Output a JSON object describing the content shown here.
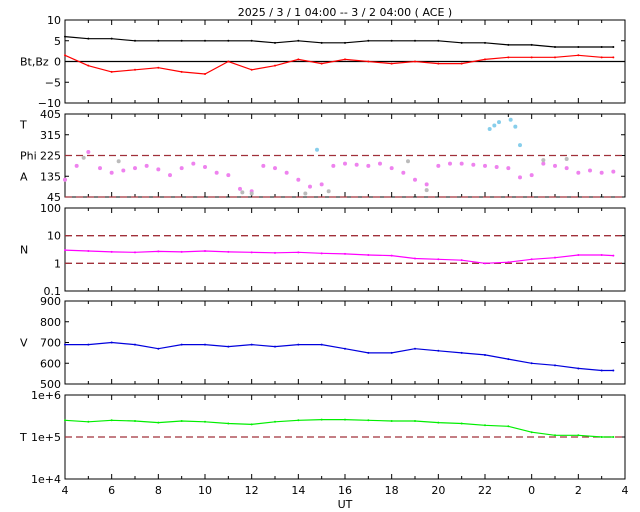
{
  "chart_data": {
    "title": "2025 /  3 /  1    04:00 --  3 /  2    04:00 ( ACE )",
    "xlabel": "UT",
    "x_ticks": [
      "4",
      "6",
      "8",
      "10",
      "12",
      "14",
      "16",
      "18",
      "20",
      "22",
      "0",
      "2",
      "4"
    ],
    "x_range_hours": [
      4,
      28
    ],
    "panels": [
      {
        "id": "mag",
        "type": "line",
        "ylabel": "Bt,Bz",
        "ylim": [
          -10,
          10
        ],
        "y_ticks": [
          "10",
          "5",
          "0",
          "−5",
          "−10"
        ],
        "y_tick_values": [
          10,
          5,
          0,
          -5,
          -10
        ],
        "zero_line": true,
        "series": [
          {
            "name": "Bt",
            "color": "#000000",
            "x": [
              4,
              5,
              6,
              7,
              8,
              9,
              10,
              11,
              12,
              13,
              14,
              15,
              16,
              17,
              18,
              19,
              20,
              21,
              22,
              23,
              24,
              25,
              26,
              27,
              27.5
            ],
            "y": [
              6,
              5.5,
              5.5,
              5,
              5,
              5,
              5,
              5,
              5,
              4.5,
              5,
              4.5,
              4.5,
              5,
              5,
              5,
              5,
              4.5,
              4.5,
              4,
              4,
              3.5,
              3.5,
              3.5,
              3.5
            ]
          },
          {
            "name": "Bz",
            "color": "#ff0000",
            "x": [
              4,
              5,
              6,
              7,
              8,
              9,
              10,
              11,
              12,
              13,
              14,
              15,
              16,
              17,
              18,
              19,
              20,
              21,
              22,
              23,
              24,
              25,
              26,
              27,
              27.5
            ],
            "y": [
              1.5,
              -1,
              -2.5,
              -2,
              -1.5,
              -2.5,
              -3,
              0,
              -2,
              -1,
              0.5,
              -0.5,
              0.5,
              0,
              -0.5,
              0,
              -0.5,
              -0.5,
              0.5,
              1,
              1,
              1,
              1.5,
              1,
              1
            ]
          }
        ]
      },
      {
        "id": "angle",
        "type": "scatter",
        "ylabels": [
          "T",
          "Phi",
          "A"
        ],
        "ylim": [
          45,
          405
        ],
        "y_ticks": [
          "405",
          "315",
          "225",
          "135",
          "45"
        ],
        "y_tick_values": [
          405,
          315,
          225,
          135,
          45
        ],
        "ref_lines": [
          225,
          45
        ],
        "series": [
          {
            "name": "",
            "color": "#ee82ee",
            "x": [
              4,
              4.5,
              5,
              5.5,
              6,
              6.5,
              7,
              7.5,
              8,
              8.5,
              9,
              9.5,
              10,
              10.5,
              11,
              11.5,
              12,
              12.5,
              13,
              13.5,
              14,
              14.5,
              15,
              15.5,
              16,
              16.5,
              17,
              17.5,
              18,
              18.5,
              19,
              19.5,
              20,
              20.5,
              21,
              21.5,
              22,
              22.5,
              23,
              23.5,
              24,
              24.5,
              25,
              25.5,
              26,
              26.5,
              27,
              27.5
            ],
            "y": [
              120,
              180,
              240,
              170,
              150,
              160,
              170,
              180,
              165,
              140,
              170,
              190,
              175,
              150,
              140,
              80,
              70,
              180,
              170,
              150,
              120,
              90,
              100,
              180,
              190,
              185,
              180,
              190,
              170,
              150,
              120,
              100,
              180,
              190,
              190,
              185,
              180,
              175,
              170,
              130,
              140,
              190,
              180,
              170,
              150,
              160,
              150,
              155
            ]
          },
          {
            "name": "",
            "color": "#bbbbbb",
            "x": [
              4.8,
              6.3,
              11.6,
              12,
              14.3,
              15.3,
              18.7,
              19.5,
              24.5,
              25.5
            ],
            "y": [
              215,
              200,
              65,
              60,
              60,
              70,
              200,
              75,
              205,
              210
            ]
          },
          {
            "name": "",
            "color": "#87ceeb",
            "x": [
              14.8,
              22.2,
              22.4,
              22.6,
              23.1,
              23.3,
              23.5
            ],
            "y": [
              250,
              340,
              355,
              370,
              380,
              350,
              270
            ]
          }
        ]
      },
      {
        "id": "density",
        "type": "line",
        "ylabel": "N",
        "scale": "log",
        "ylim": [
          0.1,
          100
        ],
        "y_ticks": [
          "100",
          "10",
          "1",
          "0.1"
        ],
        "y_tick_values": [
          100,
          10,
          1,
          0.1
        ],
        "ref_lines": [
          10,
          1
        ],
        "series": [
          {
            "name": "",
            "color": "#ff00ff",
            "x": [
              4,
              5,
              6,
              7,
              8,
              9,
              10,
              11,
              12,
              13,
              14,
              15,
              16,
              17,
              18,
              19,
              20,
              21,
              22,
              23,
              24,
              25,
              26,
              27,
              27.5
            ],
            "y": [
              3,
              2.8,
              2.6,
              2.5,
              2.7,
              2.6,
              2.8,
              2.6,
              2.5,
              2.4,
              2.5,
              2.3,
              2.2,
              2.0,
              1.9,
              1.5,
              1.4,
              1.3,
              1.0,
              1.1,
              1.4,
              1.6,
              2.0,
              2.0,
              1.9
            ]
          }
        ]
      },
      {
        "id": "speed",
        "type": "line",
        "ylabel": "V",
        "ylim": [
          500,
          900
        ],
        "y_ticks": [
          "900",
          "800",
          "700",
          "600",
          "500"
        ],
        "y_tick_values": [
          900,
          800,
          700,
          600,
          500
        ],
        "series": [
          {
            "name": "",
            "color": "#0000dd",
            "x": [
              4,
              5,
              6,
              7,
              8,
              9,
              10,
              11,
              12,
              13,
              14,
              15,
              16,
              17,
              18,
              19,
              20,
              21,
              22,
              23,
              24,
              25,
              26,
              27,
              27.5
            ],
            "y": [
              690,
              690,
              700,
              690,
              670,
              690,
              690,
              680,
              690,
              680,
              690,
              690,
              670,
              650,
              650,
              670,
              660,
              650,
              640,
              620,
              600,
              590,
              575,
              565,
              565
            ]
          }
        ]
      },
      {
        "id": "temperature",
        "type": "line",
        "ylabel": "T",
        "scale": "log",
        "ylim": [
          10000,
          1000000
        ],
        "y_ticks": [
          "1e+6",
          "1e+5",
          "1e+4"
        ],
        "y_tick_values": [
          1000000,
          100000,
          10000
        ],
        "ref_lines": [
          100000
        ],
        "series": [
          {
            "name": "",
            "color": "#00ee00",
            "x": [
              4,
              5,
              6,
              7,
              8,
              9,
              10,
              11,
              12,
              13,
              14,
              15,
              16,
              17,
              18,
              19,
              20,
              21,
              22,
              23,
              24,
              25,
              26,
              27,
              27.5
            ],
            "y": [
              250000,
              230000,
              250000,
              240000,
              220000,
              240000,
              230000,
              210000,
              200000,
              230000,
              250000,
              260000,
              260000,
              250000,
              240000,
              240000,
              220000,
              210000,
              190000,
              180000,
              130000,
              110000,
              110000,
              100000,
              100000
            ]
          }
        ]
      }
    ]
  }
}
